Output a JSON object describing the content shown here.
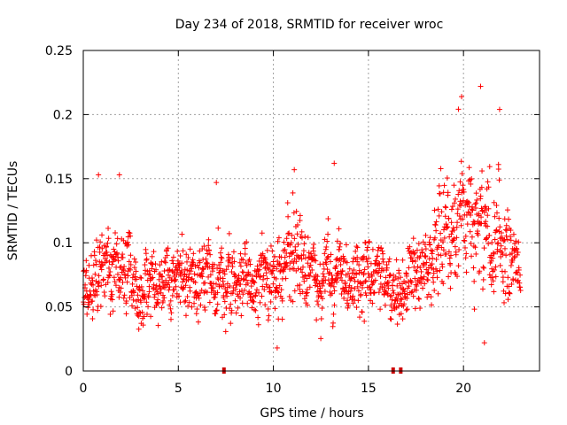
{
  "chart_data": {
    "type": "scatter",
    "title": "Day 234 of 2018, SRMTID for receiver wroc",
    "xlabel": "GPS time / hours",
    "ylabel": "SRMTID / TECUs",
    "xlim": [
      0,
      24
    ],
    "ylim": [
      0,
      0.25
    ],
    "xticks": [
      0,
      5,
      10,
      15,
      20
    ],
    "yticks": [
      0,
      0.05,
      0.1,
      0.15,
      0.2,
      0.25
    ],
    "xtick_labels": [
      "0",
      "5",
      "10",
      "15",
      "20"
    ],
    "ytick_labels": [
      "0",
      "0.05",
      "0.1",
      "0.15",
      "0.2",
      "0.25"
    ],
    "grid": true,
    "marker": "+",
    "color": "#ff0000",
    "data_gaps_hours": [
      7.4,
      16.3,
      16.7
    ],
    "series": [
      {
        "name": "SRMTID",
        "envelope": {
          "x": [
            0,
            0.5,
            1,
            2,
            3,
            4,
            5,
            6,
            7,
            8,
            9,
            10,
            10.8,
            11.5,
            12,
            13,
            14,
            15,
            15.5,
            16,
            16.5,
            17,
            17.5,
            18,
            18.5,
            19,
            19.5,
            20,
            20.5,
            21,
            21.5,
            22,
            22.5,
            23
          ],
          "center": [
            0.07,
            0.065,
            0.085,
            0.075,
            0.065,
            0.07,
            0.07,
            0.072,
            0.075,
            0.07,
            0.072,
            0.068,
            0.09,
            0.08,
            0.07,
            0.075,
            0.07,
            0.065,
            0.07,
            0.065,
            0.06,
            0.07,
            0.075,
            0.085,
            0.1,
            0.115,
            0.12,
            0.115,
            0.1,
            0.11,
            0.1,
            0.095,
            0.085,
            0.065
          ],
          "spread": [
            0.025,
            0.03,
            0.04,
            0.035,
            0.028,
            0.028,
            0.03,
            0.032,
            0.038,
            0.032,
            0.032,
            0.035,
            0.045,
            0.038,
            0.03,
            0.035,
            0.03,
            0.03,
            0.03,
            0.025,
            0.025,
            0.028,
            0.03,
            0.035,
            0.04,
            0.05,
            0.055,
            0.06,
            0.05,
            0.06,
            0.05,
            0.05,
            0.04,
            0.025
          ]
        },
        "notable_points": [
          {
            "x": 0.8,
            "y": 0.153
          },
          {
            "x": 1.9,
            "y": 0.153
          },
          {
            "x": 7.0,
            "y": 0.147
          },
          {
            "x": 11.1,
            "y": 0.157
          },
          {
            "x": 13.2,
            "y": 0.162
          },
          {
            "x": 19.9,
            "y": 0.214
          },
          {
            "x": 20.9,
            "y": 0.222
          },
          {
            "x": 21.9,
            "y": 0.204
          },
          {
            "x": 10.2,
            "y": 0.018
          },
          {
            "x": 21.1,
            "y": 0.022
          }
        ]
      }
    ]
  }
}
